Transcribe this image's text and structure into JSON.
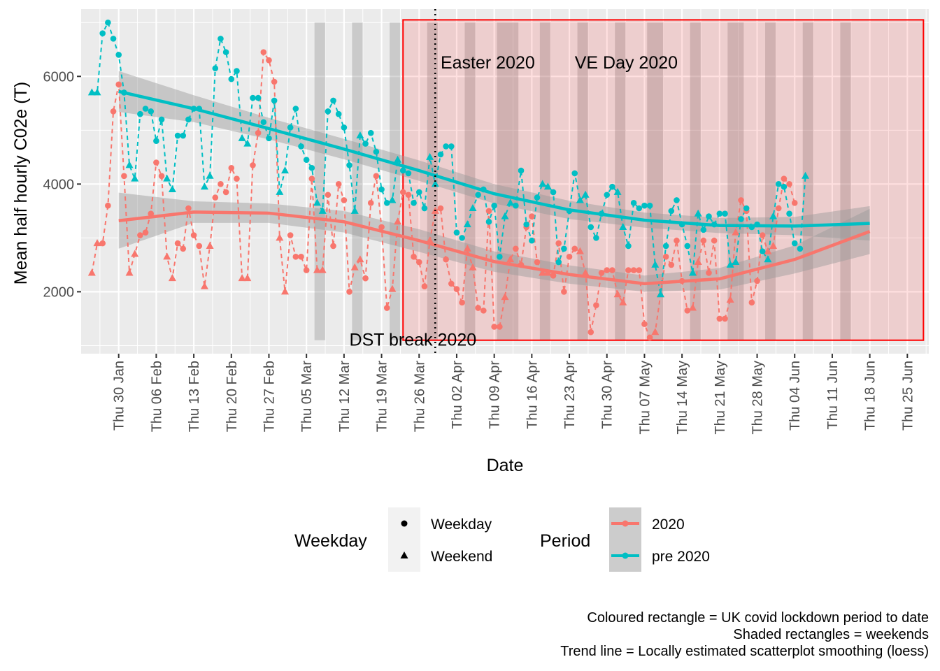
{
  "chart_data": {
    "type": "line",
    "xlabel": "Date",
    "ylabel": "Mean half hourly C02e (T)",
    "ylim": [
      850,
      7250
    ],
    "y_ticks": [
      2000,
      4000,
      6000
    ],
    "x_range": [
      "2020-01-23",
      "2020-06-29"
    ],
    "x_ticks": [
      {
        "date": "2020-01-30",
        "label": "Thu 30 Jan"
      },
      {
        "date": "2020-02-06",
        "label": "Thu 06 Feb"
      },
      {
        "date": "2020-02-13",
        "label": "Thu 13 Feb"
      },
      {
        "date": "2020-02-20",
        "label": "Thu 20 Feb"
      },
      {
        "date": "2020-02-27",
        "label": "Thu 27 Feb"
      },
      {
        "date": "2020-03-05",
        "label": "Thu 05 Mar"
      },
      {
        "date": "2020-03-12",
        "label": "Thu 12 Mar"
      },
      {
        "date": "2020-03-19",
        "label": "Thu 19 Mar"
      },
      {
        "date": "2020-03-26",
        "label": "Thu 26 Mar"
      },
      {
        "date": "2020-04-02",
        "label": "Thu 02 Apr"
      },
      {
        "date": "2020-04-09",
        "label": "Thu 09 Apr"
      },
      {
        "date": "2020-04-16",
        "label": "Thu 16 Apr"
      },
      {
        "date": "2020-04-23",
        "label": "Thu 23 Apr"
      },
      {
        "date": "2020-04-30",
        "label": "Thu 30 Apr"
      },
      {
        "date": "2020-05-07",
        "label": "Thu 07 May"
      },
      {
        "date": "2020-05-14",
        "label": "Thu 14 May"
      },
      {
        "date": "2020-05-21",
        "label": "Thu 21 May"
      },
      {
        "date": "2020-05-28",
        "label": "Thu 28 May"
      },
      {
        "date": "2020-06-04",
        "label": "Thu 04 Jun"
      },
      {
        "date": "2020-06-11",
        "label": "Thu 11 Jun"
      },
      {
        "date": "2020-06-18",
        "label": "Thu 18 Jun"
      },
      {
        "date": "2020-06-25",
        "label": "Thu 25 Jun"
      }
    ],
    "grid": true,
    "lockdown_rect": {
      "x": [
        "2020-03-23",
        "2020-06-28"
      ],
      "y": [
        1100,
        7050
      ]
    },
    "weekend_rects_y": [
      1100,
      7000
    ],
    "weekend_rects": [
      {
        "start": "2020-03-07",
        "end": "2020-03-08"
      },
      {
        "start": "2020-03-14",
        "end": "2020-03-15"
      },
      {
        "start": "2020-03-21",
        "end": "2020-03-22"
      },
      {
        "start": "2020-03-28",
        "end": "2020-03-29"
      },
      {
        "start": "2020-04-04",
        "end": "2020-04-05"
      },
      {
        "start": "2020-04-10",
        "end": "2020-04-13"
      },
      {
        "start": "2020-04-18",
        "end": "2020-04-19"
      },
      {
        "start": "2020-04-25",
        "end": "2020-04-26"
      },
      {
        "start": "2020-05-02",
        "end": "2020-05-03"
      },
      {
        "start": "2020-05-08",
        "end": "2020-05-10"
      },
      {
        "start": "2020-05-16",
        "end": "2020-05-17"
      },
      {
        "start": "2020-05-23",
        "end": "2020-05-25"
      },
      {
        "start": "2020-05-30",
        "end": "2020-05-31"
      },
      {
        "start": "2020-06-06",
        "end": "2020-06-07"
      },
      {
        "start": "2020-06-13",
        "end": "2020-06-14"
      }
    ],
    "reference_lines": [
      {
        "date": "2020-03-29",
        "label": "DST break 2020"
      }
    ],
    "annotations": [
      {
        "label": "DST break 2020",
        "date": "2020-03-13",
        "y": 1100
      },
      {
        "label": "Easter 2020",
        "date": "2020-03-30",
        "y": 6250
      },
      {
        "label": "VE Day 2020",
        "date": "2020-04-24",
        "y": 6250
      }
    ],
    "legend": {
      "placement": "bottom",
      "weekday": {
        "title": "Weekday",
        "items": [
          "Weekday",
          "Weekend"
        ]
      },
      "period": {
        "title": "Period",
        "items": [
          "2020",
          "pre 2020"
        ]
      }
    },
    "series": [
      {
        "name": "2020",
        "color": "#F8766D",
        "start": "2020-01-25",
        "values": [
          2350,
          2900,
          2900,
          3600,
          5350,
          5850,
          4150,
          2350,
          2700,
          3050,
          3100,
          3450,
          4400,
          4150,
          2650,
          2250,
          2900,
          2800,
          3550,
          3050,
          2850,
          2100,
          2850,
          3750,
          4000,
          3850,
          4300,
          4100,
          2250,
          2250,
          4350,
          4950,
          6450,
          6300,
          5900,
          3000,
          2000,
          3050,
          2650,
          2650,
          2400,
          4100,
          2400,
          2400,
          3800,
          2850,
          4000,
          3700,
          2000,
          2450,
          2600,
          2250,
          3650,
          4150,
          3200,
          1700,
          2050,
          3300,
          3850,
          3800,
          2650,
          2550,
          2100,
          2950,
          3500,
          3550,
          2600,
          2150,
          2050,
          1800,
          2800,
          2450,
          1700,
          1650,
          3500,
          1350,
          1350,
          1900,
          2600,
          2800,
          2500,
          3200,
          3400,
          2550,
          2350,
          2350,
          2300,
          2900,
          2000,
          2650,
          2800,
          2750,
          2350,
          1250,
          1750,
          2350,
          2400,
          2400,
          1950,
          1800,
          2400,
          2400,
          2400,
          1400,
          1150,
          1250,
          1950,
          2650,
          2500,
          2950,
          2200,
          1650,
          1700,
          2550,
          2950,
          2350,
          2950,
          1500,
          1500,
          1850,
          3100,
          3700,
          3500,
          1800,
          2200,
          3050,
          2750,
          2850,
          3550,
          4100,
          4000,
          3650
        ]
      },
      {
        "name": "pre 2020",
        "color": "#00BFC4",
        "start": "2020-01-25",
        "values": [
          5700,
          5700,
          6800,
          7000,
          6700,
          6400,
          5700,
          4350,
          4100,
          5300,
          5400,
          5350,
          4800,
          5200,
          4100,
          3900,
          4900,
          4900,
          5200,
          5400,
          5400,
          3950,
          4150,
          6150,
          6700,
          6450,
          5950,
          6100,
          4850,
          4750,
          5600,
          5600,
          5150,
          4850,
          5550,
          3850,
          4250,
          5050,
          5400,
          4700,
          4450,
          4300,
          3650,
          3500,
          5350,
          5550,
          5300,
          5050,
          4350,
          3500,
          4900,
          4750,
          4950,
          4600,
          3900,
          3650,
          3700,
          4450,
          4250,
          4200,
          3650,
          3850,
          3550,
          4500,
          4000,
          4550,
          4700,
          4700,
          3100,
          3000,
          3250,
          3550,
          3800,
          3900,
          3300,
          3600,
          2650,
          3400,
          3650,
          3600,
          4250,
          3250,
          2950,
          3750,
          4000,
          3950,
          3850,
          2550,
          2800,
          3500,
          4200,
          3700,
          3800,
          3200,
          3000,
          3450,
          3800,
          3950,
          3850,
          3200,
          2850,
          3650,
          3550,
          3600,
          3600,
          2500,
          1950,
          2850,
          3500,
          3700,
          3250,
          2850,
          2350,
          3450,
          3150,
          3400,
          3250,
          3450,
          3450,
          2500,
          2550,
          3350,
          3550,
          3200,
          3250,
          2750,
          2600,
          3400,
          4000,
          3950,
          3450,
          2900,
          2800,
          4150
        ]
      }
    ],
    "trend_lines": [
      {
        "name": "2020",
        "color": "#F8766D",
        "x": [
          "2020-01-30",
          "2020-02-13",
          "2020-02-27",
          "2020-03-12",
          "2020-03-26",
          "2020-04-09",
          "2020-04-23",
          "2020-05-07",
          "2020-05-21",
          "2020-06-04",
          "2020-06-18"
        ],
        "y": [
          3320,
          3480,
          3460,
          3300,
          2950,
          2560,
          2320,
          2150,
          2240,
          2600,
          3120
        ],
        "band_halfwidth": [
          520,
          200,
          180,
          200,
          210,
          190,
          170,
          150,
          200,
          260,
          420
        ]
      },
      {
        "name": "pre 2020",
        "color": "#00BFC4",
        "x": [
          "2020-01-30",
          "2020-02-13",
          "2020-02-27",
          "2020-03-12",
          "2020-03-26",
          "2020-04-09",
          "2020-04-23",
          "2020-05-07",
          "2020-05-21",
          "2020-06-04",
          "2020-06-18"
        ],
        "y": [
          5720,
          5400,
          5030,
          4650,
          4250,
          3820,
          3520,
          3330,
          3230,
          3220,
          3270
        ],
        "band_halfwidth": [
          380,
          250,
          200,
          190,
          190,
          180,
          170,
          140,
          140,
          170,
          320
        ]
      }
    ],
    "caption": [
      "Coloured rectangle = UK covid lockdown period to date",
      "Shaded rectangles = weekends",
      "Trend line = Locally estimated scatterplot smoothing (loess)"
    ]
  }
}
